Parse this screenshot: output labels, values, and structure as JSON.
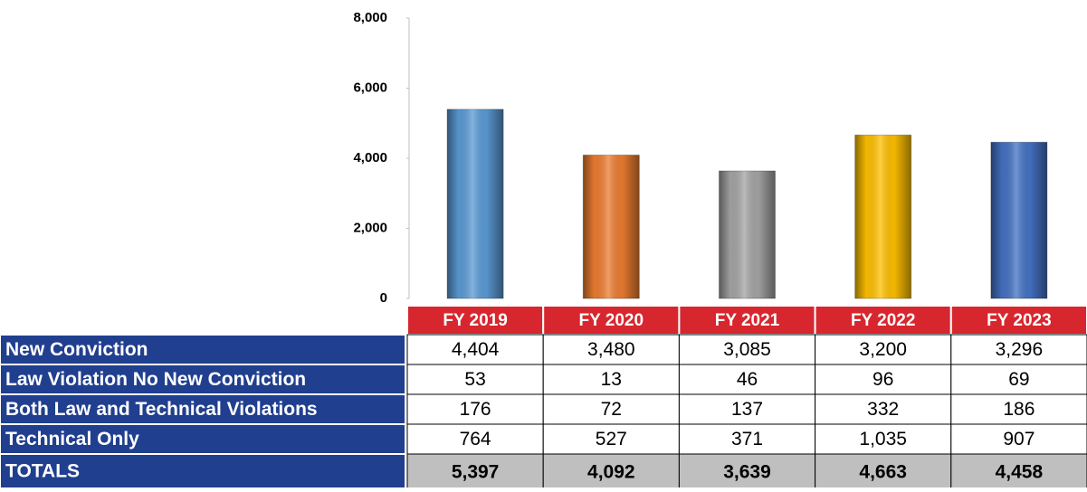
{
  "chart_data": {
    "type": "bar",
    "categories": [
      "FY 2019",
      "FY 2020",
      "FY 2021",
      "FY 2022",
      "FY 2023"
    ],
    "values": [
      5397,
      4092,
      3639,
      4663,
      4458
    ],
    "value_labels": [
      "5,397",
      "4,092",
      "3,639",
      "4,663",
      "4,458"
    ],
    "colors": [
      "#5b9bd5",
      "#ed7d31",
      "#a5a5a5",
      "#ffc000",
      "#4472c4"
    ],
    "ylim": [
      0,
      8000
    ],
    "yticks": [
      0,
      {
        "value": 2000,
        "label": "2,000"
      },
      {
        "value": 4000,
        "label": "4,000"
      },
      {
        "value": 6000,
        "label": "6,000"
      },
      {
        "value": 8000,
        "label": "8,000"
      }
    ],
    "table": {
      "rows": [
        {
          "name": "New Conviction",
          "values": [
            4404,
            3480,
            3085,
            3200,
            3296
          ],
          "value_labels": [
            "4,404",
            "3,480",
            "3,085",
            "3,200",
            "3,296"
          ]
        },
        {
          "name": "Law Violation No New Conviction",
          "values": [
            53,
            13,
            46,
            96,
            69
          ],
          "value_labels": [
            "53",
            "13",
            "46",
            "96",
            "69"
          ]
        },
        {
          "name": "Both Law and Technical Violations",
          "values": [
            176,
            72,
            137,
            332,
            186
          ],
          "value_labels": [
            "176",
            "72",
            "137",
            "332",
            "186"
          ]
        },
        {
          "name": "Technical Only",
          "values": [
            764,
            527,
            371,
            1035,
            907
          ],
          "value_labels": [
            "764",
            "527",
            "371",
            "1,035",
            "907"
          ]
        }
      ],
      "total_label": "TOTALS"
    }
  }
}
